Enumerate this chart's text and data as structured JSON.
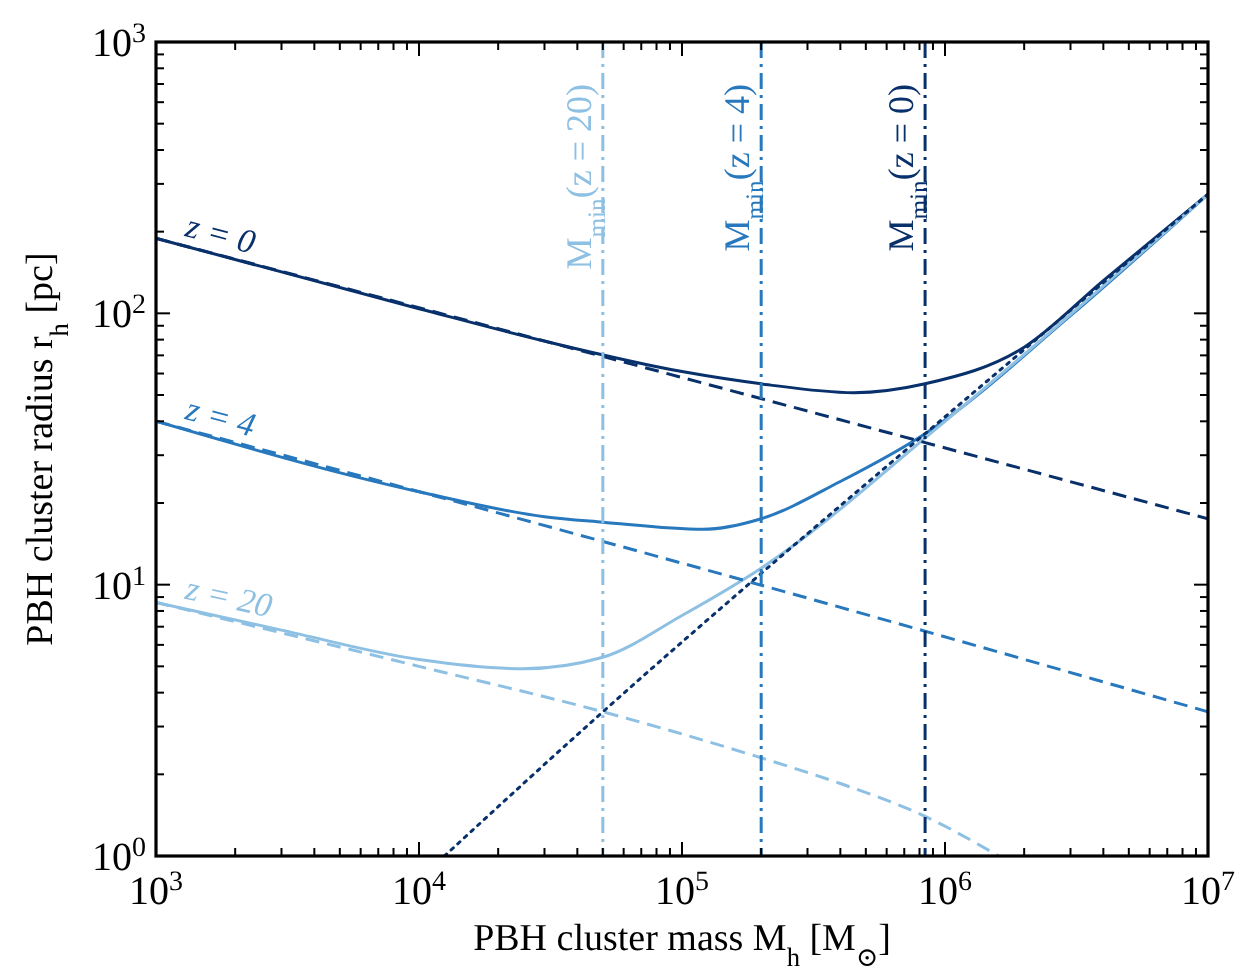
{
  "chart_data": {
    "type": "line",
    "xlabel": "PBH cluster mass  M$_{h}$ [M$_{⊙}$]",
    "ylabel": "PBH cluster radius  r$_{h}$ [pc]",
    "log": "xy",
    "grid": false,
    "xlim": [
      1000,
      10000000
    ],
    "ylim": [
      1,
      1000
    ],
    "xticks": [
      {
        "value": 1000,
        "label": "10$^{3}$"
      },
      {
        "value": 2000,
        "label": null
      },
      {
        "value": 3000,
        "label": null
      },
      {
        "value": 4000,
        "label": null
      },
      {
        "value": 5000,
        "label": null
      },
      {
        "value": 6000,
        "label": null
      },
      {
        "value": 7000,
        "label": null
      },
      {
        "value": 8000,
        "label": null
      },
      {
        "value": 9000,
        "label": null
      },
      {
        "value": 10000,
        "label": "10$^{4}$"
      },
      {
        "value": 20000,
        "label": null
      },
      {
        "value": 30000,
        "label": null
      },
      {
        "value": 40000,
        "label": null
      },
      {
        "value": 50000,
        "label": null
      },
      {
        "value": 60000,
        "label": null
      },
      {
        "value": 70000,
        "label": null
      },
      {
        "value": 80000,
        "label": null
      },
      {
        "value": 90000,
        "label": null
      },
      {
        "value": 100000,
        "label": "10$^{5}$"
      },
      {
        "value": 200000,
        "label": null
      },
      {
        "value": 300000,
        "label": null
      },
      {
        "value": 400000,
        "label": null
      },
      {
        "value": 500000,
        "label": null
      },
      {
        "value": 600000,
        "label": null
      },
      {
        "value": 700000,
        "label": null
      },
      {
        "value": 800000,
        "label": null
      },
      {
        "value": 900000,
        "label": null
      },
      {
        "value": 1000000,
        "label": "10$^{6}$"
      },
      {
        "value": 2000000,
        "label": null
      },
      {
        "value": 3000000,
        "label": null
      },
      {
        "value": 4000000,
        "label": null
      },
      {
        "value": 5000000,
        "label": null
      },
      {
        "value": 6000000,
        "label": null
      },
      {
        "value": 7000000,
        "label": null
      },
      {
        "value": 8000000,
        "label": null
      },
      {
        "value": 9000000,
        "label": null
      },
      {
        "value": 10000000,
        "label": "10$^{7}$"
      }
    ],
    "yticks": [
      {
        "value": 1,
        "label": "10$^{0}$"
      },
      {
        "value": 2,
        "label": null
      },
      {
        "value": 3,
        "label": null
      },
      {
        "value": 4,
        "label": null
      },
      {
        "value": 5,
        "label": null
      },
      {
        "value": 6,
        "label": null
      },
      {
        "value": 7,
        "label": null
      },
      {
        "value": 8,
        "label": null
      },
      {
        "value": 9,
        "label": null
      },
      {
        "value": 10,
        "label": "10$^{1}$"
      },
      {
        "value": 20,
        "label": null
      },
      {
        "value": 30,
        "label": null
      },
      {
        "value": 40,
        "label": null
      },
      {
        "value": 50,
        "label": null
      },
      {
        "value": 60,
        "label": null
      },
      {
        "value": 70,
        "label": null
      },
      {
        "value": 80,
        "label": null
      },
      {
        "value": 90,
        "label": null
      },
      {
        "value": 100,
        "label": "10$^{2}$"
      },
      {
        "value": 200,
        "label": null
      },
      {
        "value": 300,
        "label": null
      },
      {
        "value": 400,
        "label": null
      },
      {
        "value": 500,
        "label": null
      },
      {
        "value": 600,
        "label": null
      },
      {
        "value": 700,
        "label": null
      },
      {
        "value": 800,
        "label": null
      },
      {
        "value": 900,
        "label": null
      },
      {
        "value": 1000,
        "label": "10$^{3}$"
      }
    ],
    "series": [
      {
        "name": "z = 0",
        "color": "#08306b",
        "line_style": "solid",
        "x": [
          1000,
          10000,
          30000,
          100000,
          200000,
          450000,
          840000,
          2000000,
          4000000,
          10000000
        ],
        "values": [
          189,
          104,
          79,
          61,
          55,
          51,
          55,
          75,
          132,
          275
        ]
      },
      {
        "name": "z = 4",
        "color": "#2878bd",
        "line_style": "solid",
        "x": [
          1000,
          10000,
          30000,
          50000,
          120000,
          200000,
          400000,
          840000,
          3000000,
          10000000
        ],
        "values": [
          40,
          22,
          17.8,
          17,
          16,
          17.5,
          24,
          36,
          98,
          275
        ]
      },
      {
        "name": "z = 20",
        "color": "#8dc0e3",
        "line_style": "solid",
        "x": [
          1000,
          3000,
          10000,
          25000,
          50000,
          100000,
          200000,
          1000000,
          10000000
        ],
        "values": [
          8.6,
          6.8,
          5.3,
          4.9,
          5.4,
          7.7,
          11.5,
          40,
          275
        ]
      },
      {
        "color": "#08306b",
        "line_style": "dashed",
        "x": [
          1000,
          100000,
          10000000
        ],
        "values": [
          189,
          58,
          17.5
        ]
      },
      {
        "color": "#2878bd",
        "line_style": "dashed",
        "x": [
          1000,
          100000,
          10000000
        ],
        "values": [
          40,
          12,
          3.4
        ]
      },
      {
        "color": "#8dc0e3",
        "line_style": "dashed",
        "x": [
          1000,
          10000,
          50000,
          200000,
          400000,
          840000,
          1600000
        ],
        "values": [
          8.6,
          5,
          3.4,
          2.3,
          1.85,
          1.4,
          1
        ]
      },
      {
        "color": "#08306b",
        "line_style": "dotted",
        "x": [
          12500,
          50000,
          200000,
          840000,
          10000000
        ],
        "values": [
          1,
          3.4,
          11,
          36,
          275
        ]
      }
    ],
    "ref_lines": [
      {
        "axis": "x",
        "value": 50000,
        "color": "#8dc0e3"
      },
      {
        "axis": "x",
        "value": 200000,
        "color": "#2878bd"
      },
      {
        "axis": "x",
        "value": 840000,
        "color": "#08306b"
      }
    ],
    "annotations": [
      {
        "text": "M$_{min}$(z = 20)",
        "x": 50000,
        "y": 700
      },
      {
        "text": "M$_{min}$(z = 4)",
        "x": 200000,
        "y": 700
      },
      {
        "text": "M$_{min}$(z = 0)",
        "x": 840000,
        "y": 700
      }
    ]
  }
}
